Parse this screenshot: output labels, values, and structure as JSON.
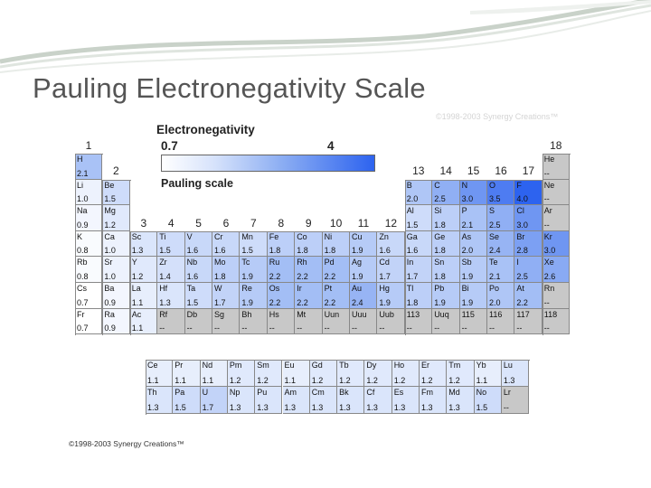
{
  "slide": {
    "title": "Pauling Electronegativity Scale"
  },
  "figure": {
    "copyright_top": "©1998-2003 Synergy Creations™",
    "copyright_bottom": "©1998-2003 Synergy Creations™",
    "legend": {
      "title": "Electronegativity",
      "min_label": "0.7",
      "max_label": "4",
      "caption": "Pauling scale"
    },
    "group_numbers": [
      "1",
      "2",
      "3",
      "4",
      "5",
      "6",
      "7",
      "8",
      "9",
      "10",
      "11",
      "12",
      "13",
      "14",
      "15",
      "16",
      "17",
      "18"
    ],
    "colors": {
      "empty": "#c8c8c8",
      "low": "#ffffff",
      "mid": "#9ab7f4",
      "high": "#2d63ef"
    },
    "elements": [
      {
        "symbol": "H",
        "en": "2.1",
        "row": 1,
        "col": 1
      },
      {
        "symbol": "He",
        "en": "--",
        "row": 1,
        "col": 18
      },
      {
        "symbol": "Li",
        "en": "1.0",
        "row": 2,
        "col": 1
      },
      {
        "symbol": "Be",
        "en": "1.5",
        "row": 2,
        "col": 2
      },
      {
        "symbol": "B",
        "en": "2.0",
        "row": 2,
        "col": 13
      },
      {
        "symbol": "C",
        "en": "2.5",
        "row": 2,
        "col": 14
      },
      {
        "symbol": "N",
        "en": "3.0",
        "row": 2,
        "col": 15
      },
      {
        "symbol": "O",
        "en": "3.5",
        "row": 2,
        "col": 16
      },
      {
        "symbol": "F",
        "en": "4.0",
        "row": 2,
        "col": 17
      },
      {
        "symbol": "Ne",
        "en": "--",
        "row": 2,
        "col": 18
      },
      {
        "symbol": "Na",
        "en": "0.9",
        "row": 3,
        "col": 1
      },
      {
        "symbol": "Mg",
        "en": "1.2",
        "row": 3,
        "col": 2
      },
      {
        "symbol": "Al",
        "en": "1.5",
        "row": 3,
        "col": 13
      },
      {
        "symbol": "Si",
        "en": "1.8",
        "row": 3,
        "col": 14
      },
      {
        "symbol": "P",
        "en": "2.1",
        "row": 3,
        "col": 15
      },
      {
        "symbol": "S",
        "en": "2.5",
        "row": 3,
        "col": 16
      },
      {
        "symbol": "Cl",
        "en": "3.0",
        "row": 3,
        "col": 17
      },
      {
        "symbol": "Ar",
        "en": "--",
        "row": 3,
        "col": 18
      },
      {
        "symbol": "K",
        "en": "0.8",
        "row": 4,
        "col": 1
      },
      {
        "symbol": "Ca",
        "en": "1.0",
        "row": 4,
        "col": 2
      },
      {
        "symbol": "Sc",
        "en": "1.3",
        "row": 4,
        "col": 3
      },
      {
        "symbol": "Ti",
        "en": "1.5",
        "row": 4,
        "col": 4
      },
      {
        "symbol": "V",
        "en": "1.6",
        "row": 4,
        "col": 5
      },
      {
        "symbol": "Cr",
        "en": "1.6",
        "row": 4,
        "col": 6
      },
      {
        "symbol": "Mn",
        "en": "1.5",
        "row": 4,
        "col": 7
      },
      {
        "symbol": "Fe",
        "en": "1.8",
        "row": 4,
        "col": 8
      },
      {
        "symbol": "Co",
        "en": "1.8",
        "row": 4,
        "col": 9
      },
      {
        "symbol": "Ni",
        "en": "1.8",
        "row": 4,
        "col": 10
      },
      {
        "symbol": "Cu",
        "en": "1.9",
        "row": 4,
        "col": 11
      },
      {
        "symbol": "Zn",
        "en": "1.6",
        "row": 4,
        "col": 12
      },
      {
        "symbol": "Ga",
        "en": "1.6",
        "row": 4,
        "col": 13
      },
      {
        "symbol": "Ge",
        "en": "1.8",
        "row": 4,
        "col": 14
      },
      {
        "symbol": "As",
        "en": "2.0",
        "row": 4,
        "col": 15
      },
      {
        "symbol": "Se",
        "en": "2.4",
        "row": 4,
        "col": 16
      },
      {
        "symbol": "Br",
        "en": "2.8",
        "row": 4,
        "col": 17
      },
      {
        "symbol": "Kr",
        "en": "3.0",
        "row": 4,
        "col": 18
      },
      {
        "symbol": "Rb",
        "en": "0.8",
        "row": 5,
        "col": 1
      },
      {
        "symbol": "Sr",
        "en": "1.0",
        "row": 5,
        "col": 2
      },
      {
        "symbol": "Y",
        "en": "1.2",
        "row": 5,
        "col": 3
      },
      {
        "symbol": "Zr",
        "en": "1.4",
        "row": 5,
        "col": 4
      },
      {
        "symbol": "Nb",
        "en": "1.6",
        "row": 5,
        "col": 5
      },
      {
        "symbol": "Mo",
        "en": "1.8",
        "row": 5,
        "col": 6
      },
      {
        "symbol": "Tc",
        "en": "1.9",
        "row": 5,
        "col": 7
      },
      {
        "symbol": "Ru",
        "en": "2.2",
        "row": 5,
        "col": 8
      },
      {
        "symbol": "Rh",
        "en": "2.2",
        "row": 5,
        "col": 9
      },
      {
        "symbol": "Pd",
        "en": "2.2",
        "row": 5,
        "col": 10
      },
      {
        "symbol": "Ag",
        "en": "1.9",
        "row": 5,
        "col": 11
      },
      {
        "symbol": "Cd",
        "en": "1.7",
        "row": 5,
        "col": 12
      },
      {
        "symbol": "In",
        "en": "1.7",
        "row": 5,
        "col": 13
      },
      {
        "symbol": "Sn",
        "en": "1.8",
        "row": 5,
        "col": 14
      },
      {
        "symbol": "Sb",
        "en": "1.9",
        "row": 5,
        "col": 15
      },
      {
        "symbol": "Te",
        "en": "2.1",
        "row": 5,
        "col": 16
      },
      {
        "symbol": "I",
        "en": "2.5",
        "row": 5,
        "col": 17
      },
      {
        "symbol": "Xe",
        "en": "2.6",
        "row": 5,
        "col": 18
      },
      {
        "symbol": "Cs",
        "en": "0.7",
        "row": 6,
        "col": 1
      },
      {
        "symbol": "Ba",
        "en": "0.9",
        "row": 6,
        "col": 2
      },
      {
        "symbol": "La",
        "en": "1.1",
        "row": 6,
        "col": 3
      },
      {
        "symbol": "Hf",
        "en": "1.3",
        "row": 6,
        "col": 4
      },
      {
        "symbol": "Ta",
        "en": "1.5",
        "row": 6,
        "col": 5
      },
      {
        "symbol": "W",
        "en": "1.7",
        "row": 6,
        "col": 6
      },
      {
        "symbol": "Re",
        "en": "1.9",
        "row": 6,
        "col": 7
      },
      {
        "symbol": "Os",
        "en": "2.2",
        "row": 6,
        "col": 8
      },
      {
        "symbol": "Ir",
        "en": "2.2",
        "row": 6,
        "col": 9
      },
      {
        "symbol": "Pt",
        "en": "2.2",
        "row": 6,
        "col": 10
      },
      {
        "symbol": "Au",
        "en": "2.4",
        "row": 6,
        "col": 11
      },
      {
        "symbol": "Hg",
        "en": "1.9",
        "row": 6,
        "col": 12
      },
      {
        "symbol": "Tl",
        "en": "1.8",
        "row": 6,
        "col": 13
      },
      {
        "symbol": "Pb",
        "en": "1.9",
        "row": 6,
        "col": 14
      },
      {
        "symbol": "Bi",
        "en": "1.9",
        "row": 6,
        "col": 15
      },
      {
        "symbol": "Po",
        "en": "2.0",
        "row": 6,
        "col": 16
      },
      {
        "symbol": "At",
        "en": "2.2",
        "row": 6,
        "col": 17
      },
      {
        "symbol": "Rn",
        "en": "--",
        "row": 6,
        "col": 18
      },
      {
        "symbol": "Fr",
        "en": "0.7",
        "row": 7,
        "col": 1
      },
      {
        "symbol": "Ra",
        "en": "0.9",
        "row": 7,
        "col": 2
      },
      {
        "symbol": "Ac",
        "en": "1.1",
        "row": 7,
        "col": 3
      },
      {
        "symbol": "Rf",
        "en": "--",
        "row": 7,
        "col": 4
      },
      {
        "symbol": "Db",
        "en": "--",
        "row": 7,
        "col": 5
      },
      {
        "symbol": "Sg",
        "en": "--",
        "row": 7,
        "col": 6
      },
      {
        "symbol": "Bh",
        "en": "--",
        "row": 7,
        "col": 7
      },
      {
        "symbol": "Hs",
        "en": "--",
        "row": 7,
        "col": 8
      },
      {
        "symbol": "Mt",
        "en": "--",
        "row": 7,
        "col": 9
      },
      {
        "symbol": "Uun",
        "en": "--",
        "row": 7,
        "col": 10
      },
      {
        "symbol": "Uuu",
        "en": "--",
        "row": 7,
        "col": 11
      },
      {
        "symbol": "Uub",
        "en": "--",
        "row": 7,
        "col": 12
      },
      {
        "symbol": "113",
        "en": "--",
        "row": 7,
        "col": 13
      },
      {
        "symbol": "Uuq",
        "en": "--",
        "row": 7,
        "col": 14
      },
      {
        "symbol": "115",
        "en": "--",
        "row": 7,
        "col": 15
      },
      {
        "symbol": "116",
        "en": "--",
        "row": 7,
        "col": 16
      },
      {
        "symbol": "117",
        "en": "--",
        "row": 7,
        "col": 17
      },
      {
        "symbol": "118",
        "en": "--",
        "row": 7,
        "col": 18
      }
    ],
    "f_block": [
      {
        "symbol": "Ce",
        "en": "1.1",
        "row": 1,
        "col": 1
      },
      {
        "symbol": "Pr",
        "en": "1.1",
        "row": 1,
        "col": 2
      },
      {
        "symbol": "Nd",
        "en": "1.1",
        "row": 1,
        "col": 3
      },
      {
        "symbol": "Pm",
        "en": "1.2",
        "row": 1,
        "col": 4
      },
      {
        "symbol": "Sm",
        "en": "1.2",
        "row": 1,
        "col": 5
      },
      {
        "symbol": "Eu",
        "en": "1.1",
        "row": 1,
        "col": 6
      },
      {
        "symbol": "Gd",
        "en": "1.2",
        "row": 1,
        "col": 7
      },
      {
        "symbol": "Tb",
        "en": "1.2",
        "row": 1,
        "col": 8
      },
      {
        "symbol": "Dy",
        "en": "1.2",
        "row": 1,
        "col": 9
      },
      {
        "symbol": "Ho",
        "en": "1.2",
        "row": 1,
        "col": 10
      },
      {
        "symbol": "Er",
        "en": "1.2",
        "row": 1,
        "col": 11
      },
      {
        "symbol": "Tm",
        "en": "1.2",
        "row": 1,
        "col": 12
      },
      {
        "symbol": "Yb",
        "en": "1.1",
        "row": 1,
        "col": 13
      },
      {
        "symbol": "Lu",
        "en": "1.3",
        "row": 1,
        "col": 14
      },
      {
        "symbol": "Th",
        "en": "1.3",
        "row": 2,
        "col": 1
      },
      {
        "symbol": "Pa",
        "en": "1.5",
        "row": 2,
        "col": 2
      },
      {
        "symbol": "U",
        "en": "1.7",
        "row": 2,
        "col": 3
      },
      {
        "symbol": "Np",
        "en": "1.3",
        "row": 2,
        "col": 4
      },
      {
        "symbol": "Pu",
        "en": "1.3",
        "row": 2,
        "col": 5
      },
      {
        "symbol": "Am",
        "en": "1.3",
        "row": 2,
        "col": 6
      },
      {
        "symbol": "Cm",
        "en": "1.3",
        "row": 2,
        "col": 7
      },
      {
        "symbol": "Bk",
        "en": "1.3",
        "row": 2,
        "col": 8
      },
      {
        "symbol": "Cf",
        "en": "1.3",
        "row": 2,
        "col": 9
      },
      {
        "symbol": "Es",
        "en": "1.3",
        "row": 2,
        "col": 10
      },
      {
        "symbol": "Fm",
        "en": "1.3",
        "row": 2,
        "col": 11
      },
      {
        "symbol": "Md",
        "en": "1.3",
        "row": 2,
        "col": 12
      },
      {
        "symbol": "No",
        "en": "1.5",
        "row": 2,
        "col": 13
      },
      {
        "symbol": "Lr",
        "en": "--",
        "row": 2,
        "col": 14
      }
    ]
  }
}
